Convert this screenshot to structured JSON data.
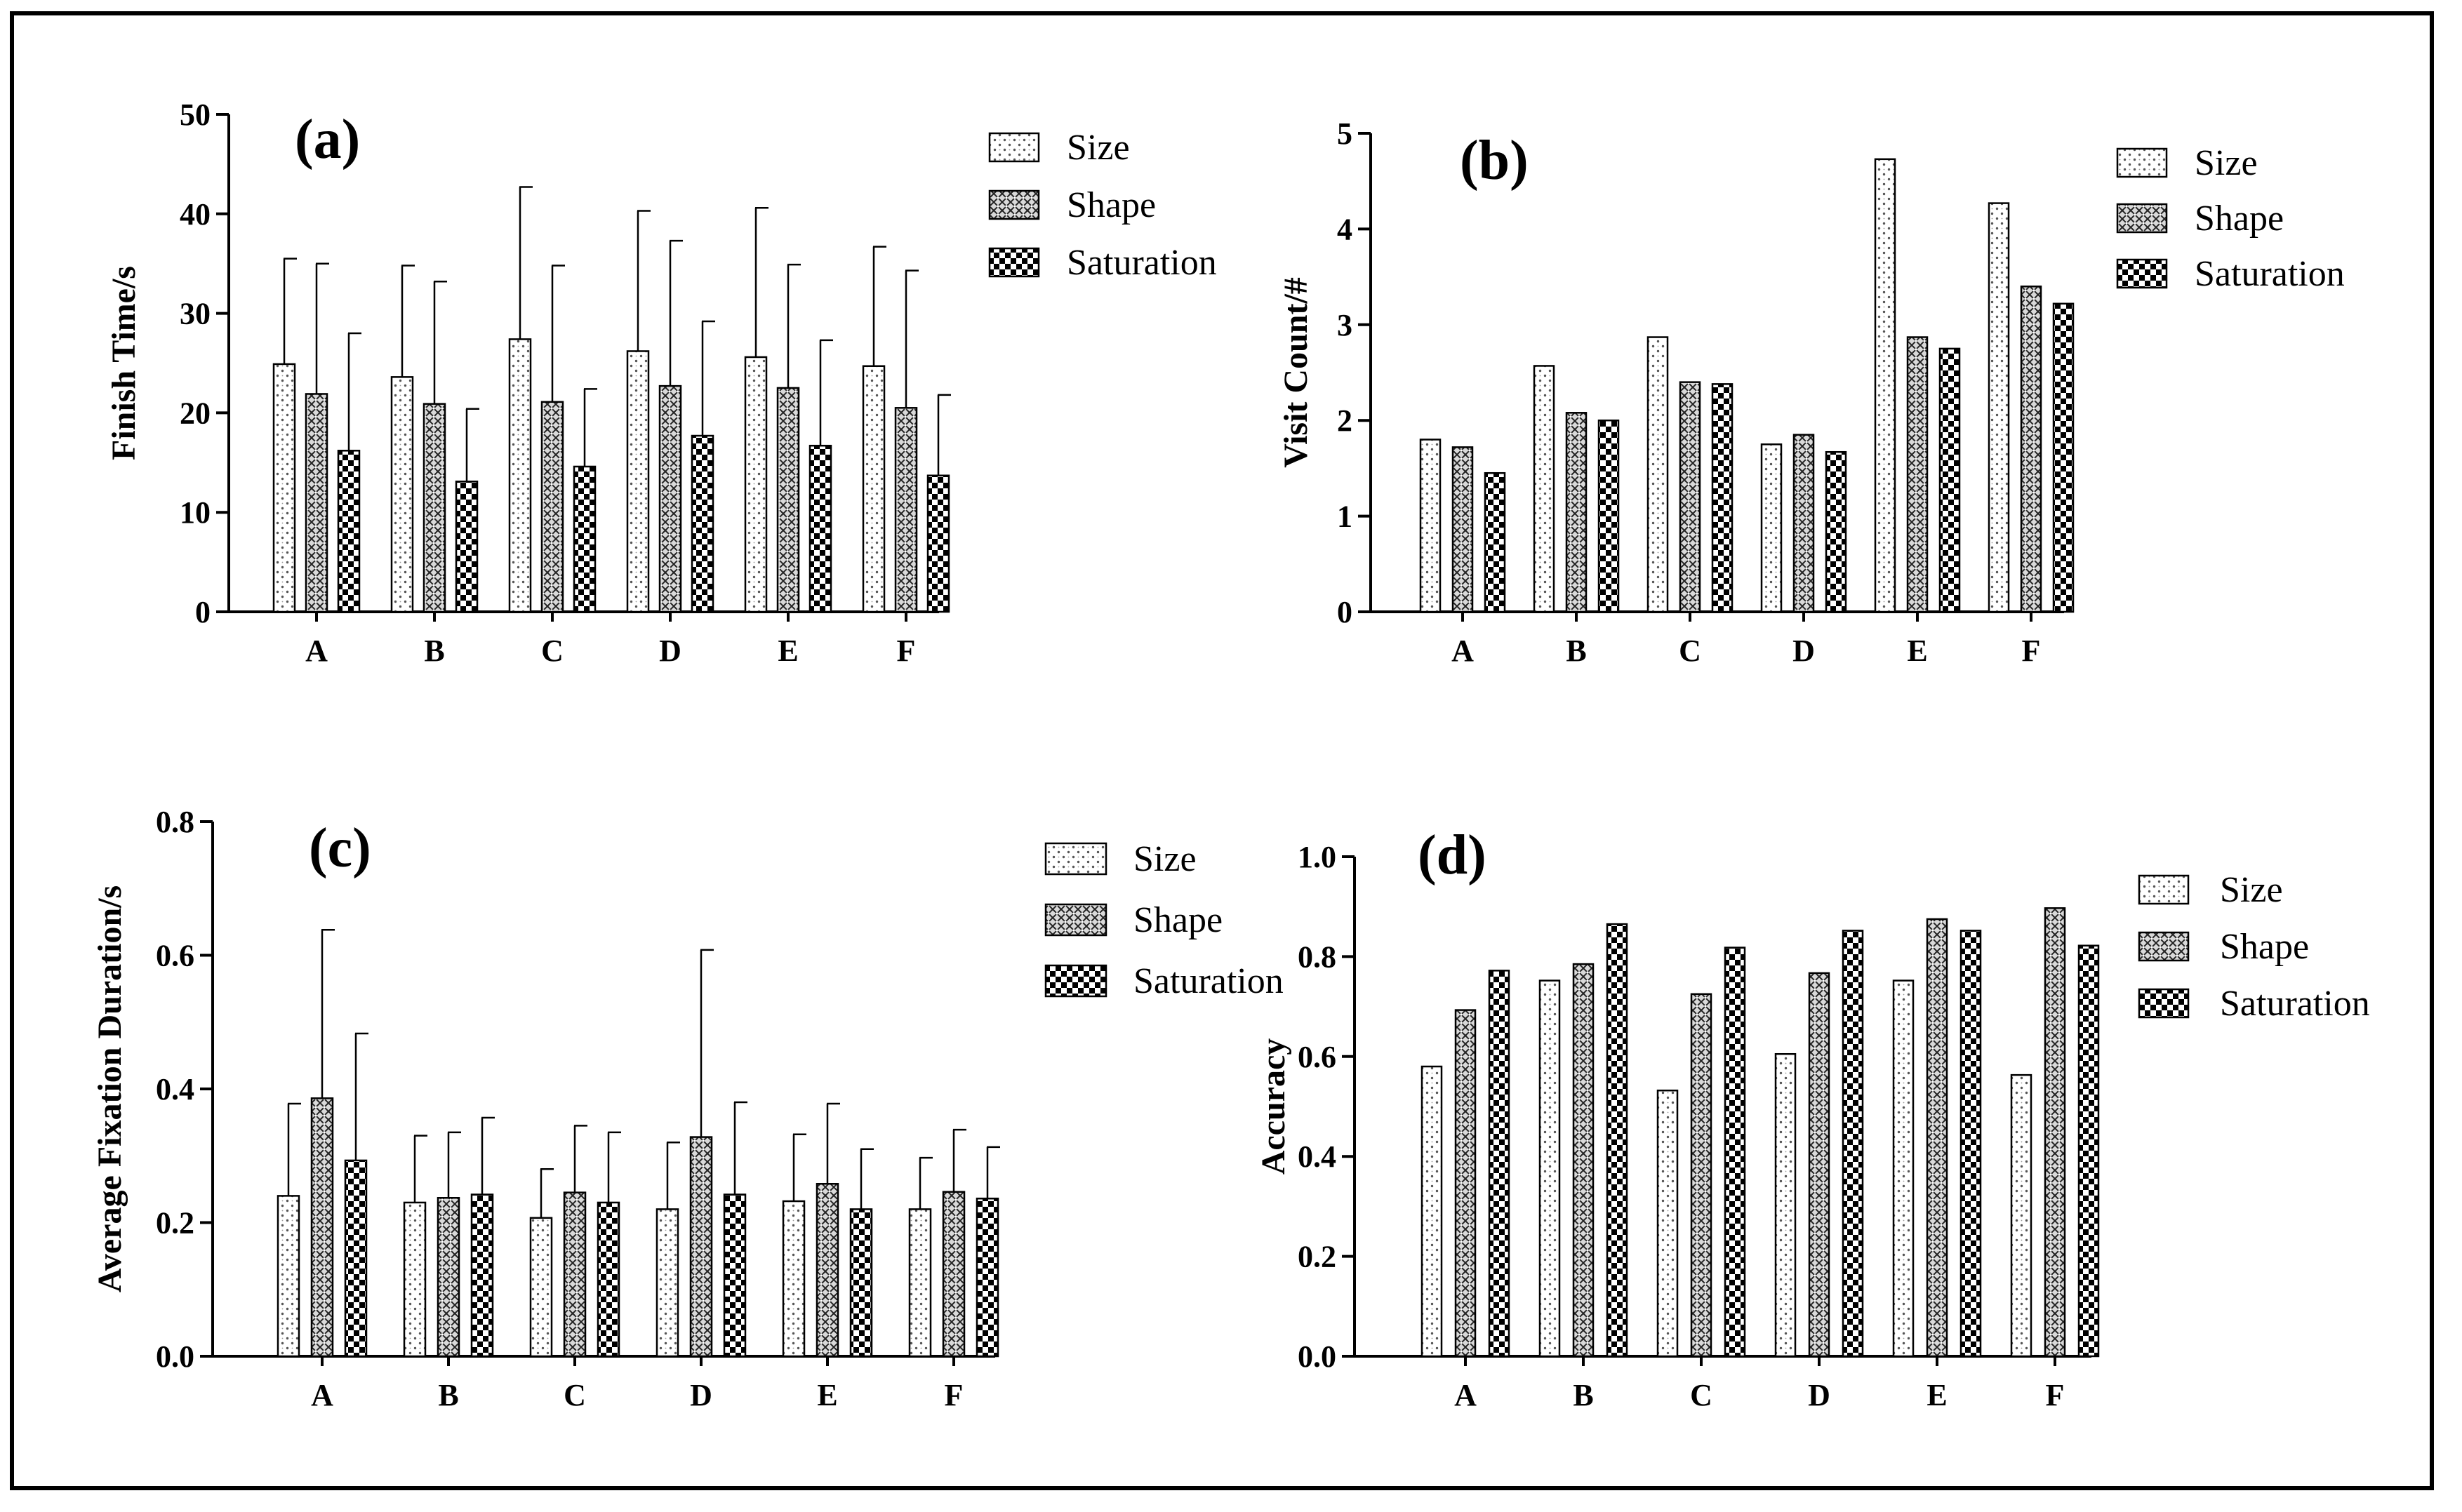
{
  "figure": {
    "series_names": [
      "Size",
      "Shape",
      "Saturation"
    ]
  },
  "chart_data": [
    {
      "panel": "(a)",
      "type": "bar",
      "ylabel": "Finish Time/s",
      "categories": [
        "A",
        "B",
        "C",
        "D",
        "E",
        "F"
      ],
      "ylim": [
        0,
        50
      ],
      "yticks": [
        0,
        10,
        20,
        30,
        40,
        50
      ],
      "tick_decimals": 0,
      "error_bars": true,
      "legend_position": "top-right",
      "series": [
        {
          "name": "Size",
          "values": [
            24.9,
            23.6,
            27.4,
            26.2,
            25.6,
            24.7
          ],
          "errors": [
            10.6,
            11.2,
            15.3,
            14.1,
            15.0,
            12.0
          ]
        },
        {
          "name": "Shape",
          "values": [
            21.9,
            20.9,
            21.1,
            22.7,
            22.5,
            20.5
          ],
          "errors": [
            13.1,
            12.3,
            13.7,
            14.6,
            12.4,
            13.8
          ]
        },
        {
          "name": "Saturation",
          "values": [
            16.2,
            13.1,
            14.6,
            17.7,
            16.7,
            13.7
          ],
          "errors": [
            11.8,
            7.3,
            7.8,
            11.5,
            10.6,
            8.1
          ]
        }
      ]
    },
    {
      "panel": "(b)",
      "type": "bar",
      "ylabel": "Visit Count/#",
      "categories": [
        "A",
        "B",
        "C",
        "D",
        "E",
        "F"
      ],
      "ylim": [
        0,
        5
      ],
      "yticks": [
        0,
        1,
        2,
        3,
        4,
        5
      ],
      "tick_decimals": 0,
      "error_bars": false,
      "legend_position": "top-right",
      "series": [
        {
          "name": "Size",
          "values": [
            1.8,
            2.57,
            2.87,
            1.75,
            4.73,
            4.27
          ]
        },
        {
          "name": "Shape",
          "values": [
            1.72,
            2.08,
            2.4,
            1.85,
            2.87,
            3.4
          ]
        },
        {
          "name": "Saturation",
          "values": [
            1.45,
            2.0,
            2.38,
            1.67,
            2.75,
            3.22
          ]
        }
      ]
    },
    {
      "panel": "(c)",
      "type": "bar",
      "ylabel": "Average Fixation Duration/s",
      "categories": [
        "A",
        "B",
        "C",
        "D",
        "E",
        "F"
      ],
      "ylim": [
        0,
        0.8
      ],
      "yticks": [
        0.0,
        0.2,
        0.4,
        0.6,
        0.8
      ],
      "tick_decimals": 1,
      "error_bars": true,
      "legend_position": "top-right",
      "series": [
        {
          "name": "Size",
          "values": [
            0.24,
            0.23,
            0.207,
            0.22,
            0.232,
            0.22
          ],
          "errors": [
            0.138,
            0.1,
            0.073,
            0.1,
            0.1,
            0.077
          ]
        },
        {
          "name": "Shape",
          "values": [
            0.386,
            0.237,
            0.245,
            0.328,
            0.258,
            0.246
          ],
          "errors": [
            0.252,
            0.098,
            0.1,
            0.28,
            0.12,
            0.093
          ]
        },
        {
          "name": "Saturation",
          "values": [
            0.293,
            0.242,
            0.23,
            0.242,
            0.22,
            0.236
          ],
          "errors": [
            0.19,
            0.115,
            0.105,
            0.138,
            0.09,
            0.077
          ]
        }
      ]
    },
    {
      "panel": "(d)",
      "type": "bar",
      "ylabel": "Accuracy",
      "categories": [
        "A",
        "B",
        "C",
        "D",
        "E",
        "F"
      ],
      "ylim": [
        0,
        1
      ],
      "yticks": [
        0.0,
        0.2,
        0.4,
        0.6,
        0.8,
        1.0
      ],
      "tick_decimals": 1,
      "error_bars": false,
      "legend_position": "top-right",
      "series": [
        {
          "name": "Size",
          "values": [
            0.58,
            0.752,
            0.532,
            0.605,
            0.752,
            0.563
          ]
        },
        {
          "name": "Shape",
          "values": [
            0.693,
            0.785,
            0.725,
            0.767,
            0.875,
            0.897
          ]
        },
        {
          "name": "Saturation",
          "values": [
            0.772,
            0.865,
            0.818,
            0.852,
            0.852,
            0.822
          ]
        }
      ]
    }
  ]
}
